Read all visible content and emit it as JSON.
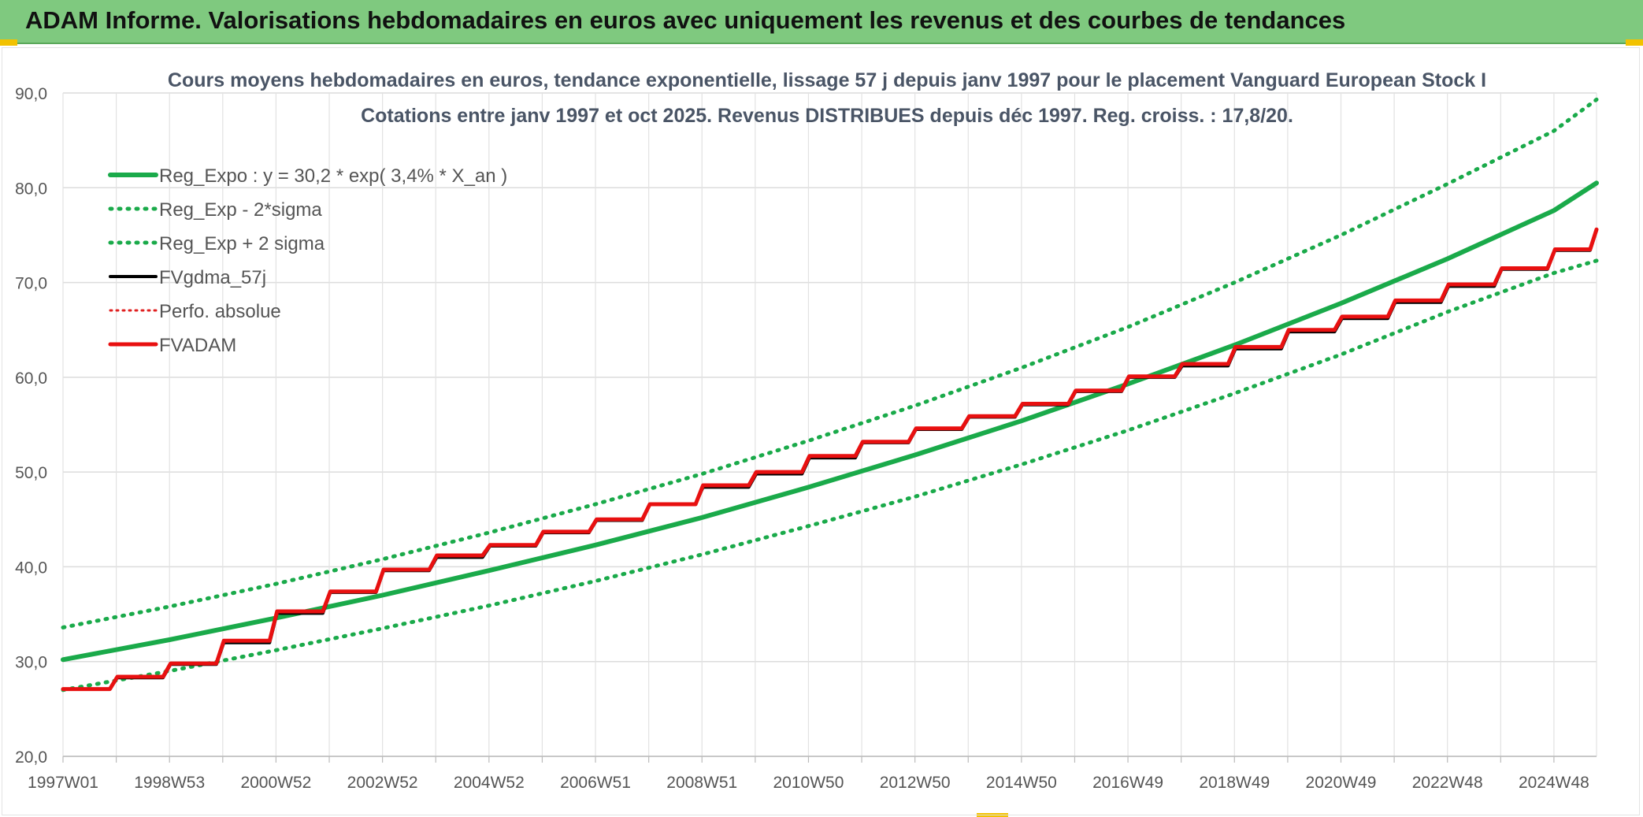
{
  "header": {
    "title": "ADAM Informe. Valorisations hebdomadaires en euros avec uniquement les revenus et des courbes de tendances"
  },
  "colors": {
    "banner": "#7fc97f",
    "reg_expo": "#1aaa4a",
    "fvgdma": "#000000",
    "perfo": "#e02020",
    "fvadam": "#e81010",
    "grid": "#dcdcdc"
  },
  "chart_data": {
    "type": "line",
    "title": "Cours moyens hebdomadaires en euros, tendance exponentielle, lissage 57 j depuis janv 1997 pour le placement Vanguard European Stock I",
    "subtitle": "Cotations entre janv 1997 et oct 2025. Revenus DISTRIBUES depuis déc 1997. Reg. croiss. : 17,8/20.",
    "xlabel": "",
    "ylabel": "",
    "ylim": [
      20,
      90
    ],
    "yticks": [
      "20,0",
      "30,0",
      "40,0",
      "50,0",
      "60,0",
      "70,0",
      "80,0",
      "90,0"
    ],
    "xlim": [
      1997.0,
      2025.8
    ],
    "xticks": [
      {
        "label": "1997W01",
        "year": 1997.0
      },
      {
        "label": "1998W53",
        "year": 1999.0
      },
      {
        "label": "2000W52",
        "year": 2001.0
      },
      {
        "label": "2002W52",
        "year": 2003.0
      },
      {
        "label": "2004W52",
        "year": 2005.0
      },
      {
        "label": "2006W51",
        "year": 2007.0
      },
      {
        "label": "2008W51",
        "year": 2009.0
      },
      {
        "label": "2010W50",
        "year": 2011.0
      },
      {
        "label": "2012W50",
        "year": 2013.0
      },
      {
        "label": "2014W50",
        "year": 2015.0
      },
      {
        "label": "2016W49",
        "year": 2017.0
      },
      {
        "label": "2018W49",
        "year": 2019.0
      },
      {
        "label": "2020W49",
        "year": 2021.0
      },
      {
        "label": "2022W48",
        "year": 2023.0
      },
      {
        "label": "2024W48",
        "year": 2025.0
      }
    ],
    "grid": true,
    "legend_position": "top-left",
    "series": [
      {
        "name": "Reg_Expo : y = 30,2 * exp( 3,4% *  X_an )",
        "style": "solid",
        "color": "#1aaa4a",
        "x": [
          1997,
          1999,
          2001,
          2003,
          2005,
          2007,
          2009,
          2011,
          2013,
          2015,
          2017,
          2019,
          2021,
          2023,
          2025,
          2025.8
        ],
        "y": [
          30.2,
          32.3,
          34.6,
          37.0,
          39.6,
          42.3,
          45.2,
          48.4,
          51.8,
          55.4,
          59.3,
          63.4,
          67.8,
          72.5,
          77.6,
          80.5
        ]
      },
      {
        "name": "Reg_Exp - 2*sigma",
        "style": "dotted",
        "color": "#1aaa4a",
        "x": [
          1997,
          1999,
          2001,
          2003,
          2005,
          2007,
          2009,
          2011,
          2013,
          2015,
          2017,
          2019,
          2021,
          2023,
          2025,
          2025.8
        ],
        "y": [
          27.0,
          29.0,
          31.2,
          33.5,
          35.9,
          38.5,
          41.3,
          44.3,
          47.4,
          50.8,
          54.4,
          58.3,
          62.4,
          66.9,
          71.0,
          72.3
        ]
      },
      {
        "name": "Reg_Exp + 2 sigma",
        "style": "dotted",
        "color": "#1aaa4a",
        "x": [
          1997,
          1999,
          2001,
          2003,
          2005,
          2007,
          2009,
          2011,
          2013,
          2015,
          2017,
          2019,
          2021,
          2023,
          2025,
          2025.8
        ],
        "y": [
          33.6,
          35.8,
          38.2,
          40.8,
          43.6,
          46.6,
          49.8,
          53.3,
          57.0,
          61.0,
          65.3,
          70.0,
          75.0,
          80.4,
          86.0,
          89.3
        ]
      },
      {
        "name": "FVgdma_57j",
        "style": "solid",
        "color": "#000000",
        "x": [
          1997,
          1998,
          1999,
          2000,
          2001,
          2002,
          2003,
          2004,
          2005,
          2006,
          2007,
          2008,
          2009,
          2010,
          2011,
          2012,
          2013,
          2014,
          2015,
          2016,
          2017,
          2018,
          2019,
          2020,
          2021,
          2022,
          2023,
          2024,
          2025,
          2025.8
        ],
        "y": [
          27.1,
          28.3,
          29.7,
          32.0,
          35.1,
          37.3,
          39.6,
          41.0,
          42.2,
          43.6,
          44.9,
          46.6,
          48.4,
          49.8,
          51.5,
          53.1,
          54.5,
          55.8,
          57.1,
          58.5,
          60.0,
          61.2,
          63.0,
          64.8,
          66.2,
          67.9,
          69.6,
          71.4,
          73.4,
          75.5
        ]
      },
      {
        "name": "Perfo. absolue",
        "style": "dotted",
        "color": "#e02020",
        "x": [],
        "y": []
      },
      {
        "name": "FVADAM",
        "style": "solid-steps",
        "color": "#e81010",
        "x": [
          1997,
          1998,
          1999,
          2000,
          2001,
          2002,
          2003,
          2004,
          2005,
          2006,
          2007,
          2008,
          2009,
          2010,
          2011,
          2012,
          2013,
          2014,
          2015,
          2016,
          2017,
          2018,
          2019,
          2020,
          2021,
          2022,
          2023,
          2024,
          2025,
          2025.8
        ],
        "y": [
          27.1,
          28.4,
          29.8,
          32.2,
          35.3,
          37.4,
          39.7,
          41.2,
          42.3,
          43.7,
          45.0,
          46.6,
          48.6,
          50.0,
          51.7,
          53.2,
          54.6,
          55.9,
          57.2,
          58.6,
          60.1,
          61.4,
          63.2,
          65.0,
          66.4,
          68.1,
          69.8,
          71.5,
          73.5,
          75.6
        ]
      }
    ]
  }
}
